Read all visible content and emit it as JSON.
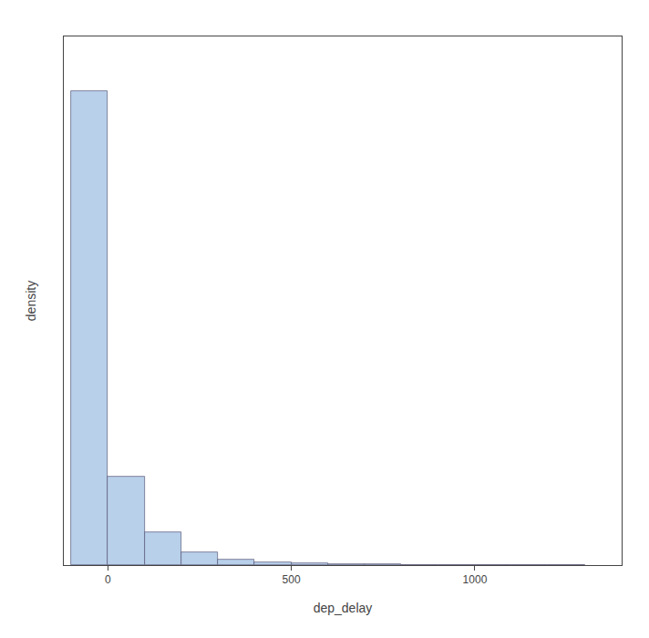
{
  "chart_data": {
    "type": "histogram",
    "xlabel": "dep_delay",
    "ylabel": "density",
    "bins": [
      -100,
      0,
      100,
      200,
      300,
      400,
      500,
      600,
      700,
      800,
      900,
      1000,
      1100,
      1200,
      1300
    ],
    "values": [
      0.0305,
      0.0057,
      0.0021,
      0.0008,
      0.00035,
      0.00018,
      9e-05,
      5e-05,
      3e-05,
      2e-05,
      1.2e-05,
      8e-06,
      4e-06,
      2e-06
    ],
    "color": "#b8d0ea",
    "xlim": [
      -120,
      1400
    ],
    "ylim": [
      0,
      0.034
    ],
    "xticks": [
      0,
      500,
      1000
    ],
    "tick_labels": "x",
    "grid": false
  }
}
